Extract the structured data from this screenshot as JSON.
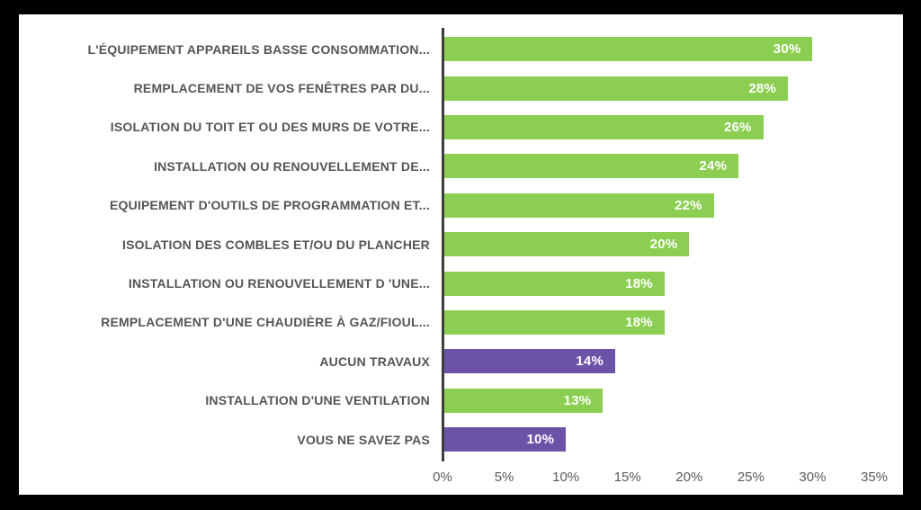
{
  "chart_data": {
    "type": "bar",
    "orientation": "horizontal",
    "title": "",
    "xlabel": "",
    "ylabel": "",
    "grid": false,
    "legend": false,
    "xlim": [
      0,
      35
    ],
    "categories": [
      "L'ÉQUIPEMENT APPAREILS BASSE CONSOMMATION...",
      "REMPLACEMENT DE VOS FENÊTRES PAR DU...",
      "ISOLATION DU TOIT ET OU DES MURS DE VOTRE...",
      "INSTALLATION OU RENOUVELLEMENT DE...",
      "EQUIPEMENT D'OUTILS DE PROGRAMMATION ET...",
      "ISOLATION DES COMBLES ET/OU DU PLANCHER",
      "INSTALLATION OU RENOUVELLEMENT D 'UNE...",
      "REMPLACEMENT D'UNE CHAUDIÈRE À GAZ/FIOUL...",
      "AUCUN TRAVAUX",
      "INSTALLATION D'UNE VENTILATION",
      "VOUS NE SAVEZ PAS"
    ],
    "values": [
      30,
      28,
      26,
      24,
      22,
      20,
      18,
      18,
      14,
      13,
      10
    ],
    "value_labels": [
      "30%",
      "28%",
      "26%",
      "24%",
      "22%",
      "20%",
      "18%",
      "18%",
      "14%",
      "13%",
      "10%"
    ],
    "bar_colors": [
      "green",
      "green",
      "green",
      "green",
      "green",
      "green",
      "green",
      "green",
      "purple",
      "green",
      "purple"
    ],
    "x_tick_values": [
      0,
      5,
      10,
      15,
      20,
      25,
      30,
      35
    ],
    "x_tick_labels": [
      "0%",
      "5%",
      "10%",
      "15%",
      "20%",
      "25%",
      "30%",
      "35%"
    ],
    "colors": {
      "green": "#8CCE52",
      "purple": "#6C53A8",
      "category_text": "#555555",
      "tick_text": "#595959",
      "value_text": "#FFFFFF",
      "axis_line": "#3D3D3D",
      "panel_bg": "#FFFFFF",
      "frame_bg": "#000000"
    }
  }
}
